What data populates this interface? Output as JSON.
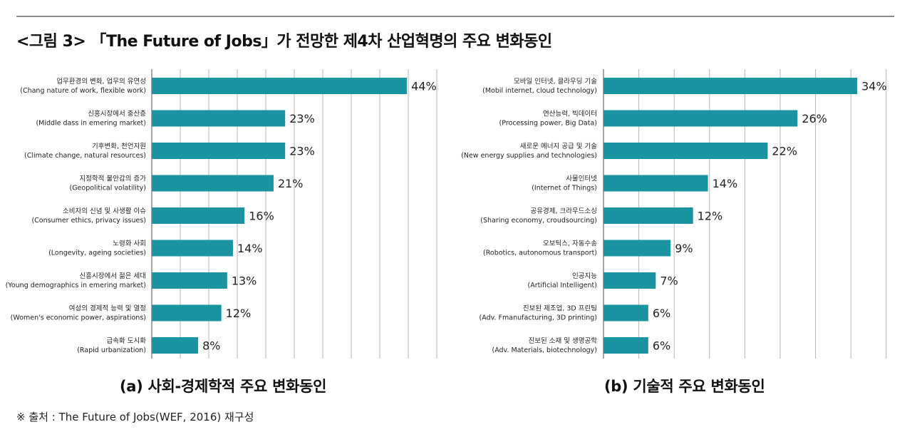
{
  "figure_title": "<그림 3> 「The Future of Jobs」가 전망한 제4차 산업혁명의 주요 변화동인",
  "source": "※ 출처 : The Future of Jobs(WEF, 2016) 재구성",
  "colors": {
    "bar": "#1a94a0",
    "grid": "#b5b5b5",
    "axis": "#6a6a6a"
  },
  "chart_data": [
    {
      "type": "bar",
      "orientation": "horizontal",
      "subtitle": "(a) 사회-경제학적 주요 변화동인",
      "value_suffix": "%",
      "xlim": [
        0,
        50
      ],
      "grid": true,
      "categories": [
        {
          "ko": "업무환경의 변화, 업무의 유연성",
          "en": "(Chang nature of work, flexible work)"
        },
        {
          "ko": "신흥시장에서 중산층",
          "en": "(Middle dass in emering market)"
        },
        {
          "ko": "기후변화, 천언지원",
          "en": "(Climate change, natural resources)"
        },
        {
          "ko": "지정학적 불안감의 증가",
          "en": "(Geopolitical volatility)"
        },
        {
          "ko": "소비자의 신념 및 사생활 이슈",
          "en": "(Consumer ethics, privacy issues)"
        },
        {
          "ko": "노령화 사회",
          "en": "(Longevity, ageing societies)"
        },
        {
          "ko": "신흥시장에서 젊은 세대",
          "en": "(Young demographics in emering market)"
        },
        {
          "ko": "여성의 경제적 능력 및 열정",
          "en": "(Women's economic power, aspirations)"
        },
        {
          "ko": "급속화 도시화",
          "en": "(Rapid urbanization)"
        }
      ],
      "values": [
        44,
        23,
        23,
        21,
        16,
        14,
        13,
        12,
        8
      ]
    },
    {
      "type": "bar",
      "orientation": "horizontal",
      "subtitle": "(b) 기술적 주요 변화동인",
      "value_suffix": "%",
      "xlim": [
        0,
        38
      ],
      "grid": true,
      "categories": [
        {
          "ko": "모바일 인터넷, 클라우딩 기술",
          "en": "(Mobil internet, cloud technology)"
        },
        {
          "ko": "연산능력, 빅데이터",
          "en": "(Processing power, Big Data)"
        },
        {
          "ko": "새로운 에너지 공급 및 기술",
          "en": "(New energy supplies and technologies)"
        },
        {
          "ko": "사물인터넷",
          "en": "(Internet of Things)"
        },
        {
          "ko": "공유경제, 크라우드소싱",
          "en": "(Sharing economy, croudsourcing)"
        },
        {
          "ko": "오보틱스, 자동수송",
          "en": "(Robotics, autonomous transport)"
        },
        {
          "ko": "인공지능",
          "en": "(Artificial Intelligent)"
        },
        {
          "ko": "진보된 제조업, 3D 프린팅",
          "en": "(Adv. Fmanufacturing, 3D printing)"
        },
        {
          "ko": "진보된 소재 및 생명공학",
          "en": "(Adv. Materials, biotechnology)"
        }
      ],
      "values": [
        34,
        26,
        22,
        14,
        12,
        9,
        7,
        6,
        6
      ]
    }
  ]
}
